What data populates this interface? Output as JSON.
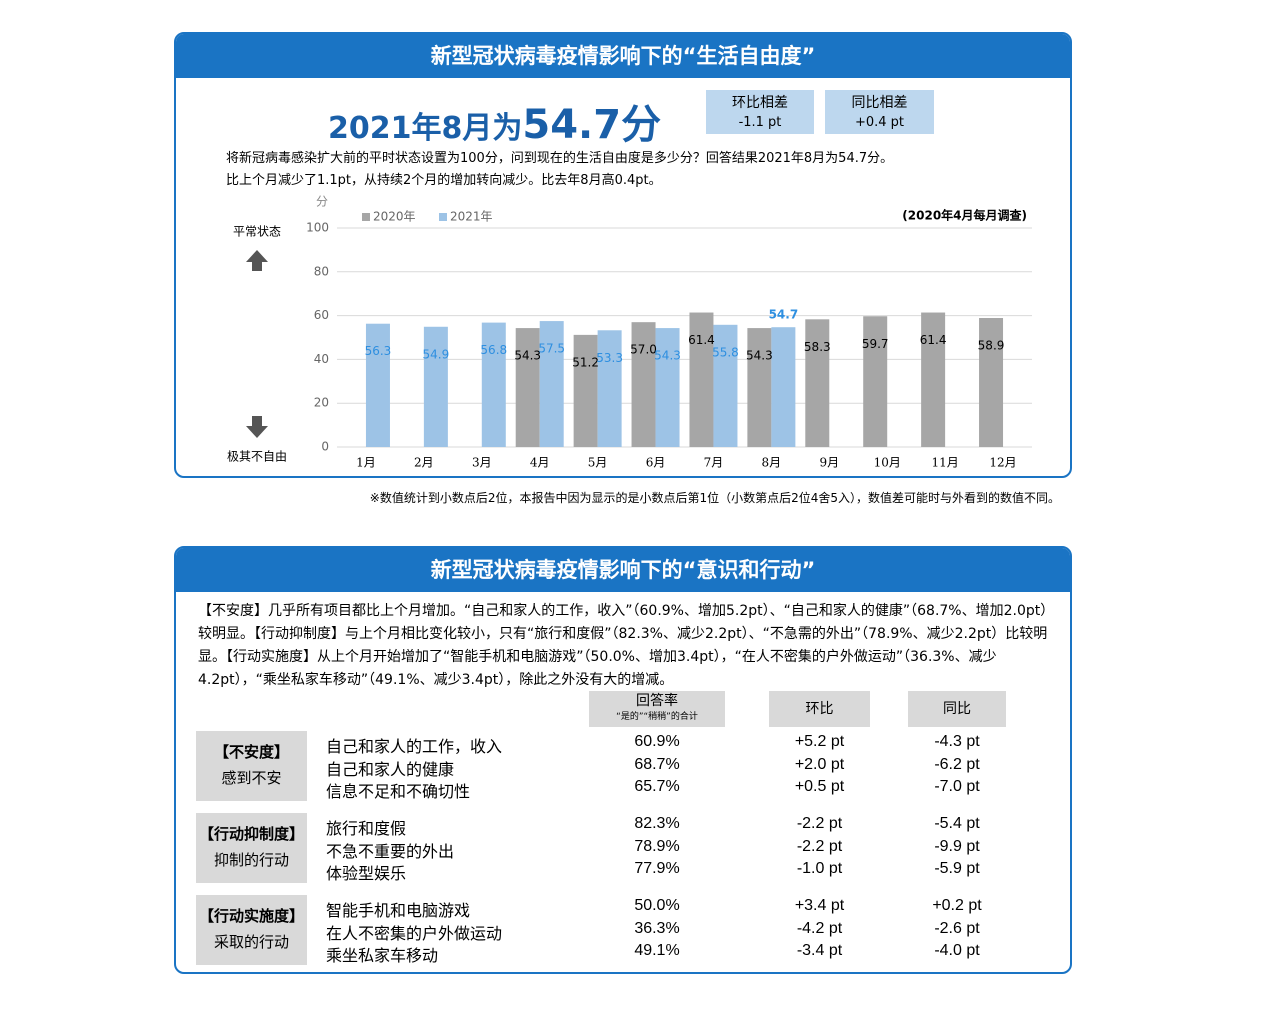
{
  "panel1": {
    "title": "新型冠状病毒疫情影响下的“生活自由度”",
    "headline_prefix": "2021年8月为",
    "headline_value": "54.7分",
    "mom_label": "环比相差",
    "mom_value": "-1.1 pt",
    "yoy_label": "同比相差",
    "yoy_value": "+0.4 pt",
    "description": [
      "将新冠病毒感染扩大前的平时状态设置为100分，问到现在的生活自由度是多少分？回答结果2021年8月为54.7分。",
      "比上个月减少了1.1pt，从持续2个月的增加转向减少。比去年8月高0.4pt。"
    ]
  },
  "chart_data": {
    "type": "bar",
    "y_unit": "分",
    "top_label": "平常状态",
    "bottom_label": "极其不自由",
    "annotation": "(2020年4月每月调查)",
    "categories": [
      "1月",
      "2月",
      "3月",
      "4月",
      "5月",
      "6月",
      "7月",
      "8月",
      "9月",
      "10月",
      "11月",
      "12月"
    ],
    "series": [
      {
        "name": "2020年",
        "color": "#a6a6a6",
        "label_color": "#000000",
        "values": [
          null,
          null,
          null,
          54.3,
          51.2,
          57.0,
          61.4,
          54.3,
          58.3,
          59.7,
          61.4,
          58.9
        ],
        "value_labels": [
          null,
          null,
          null,
          "54.3",
          "51.2",
          "57.0",
          "61.4",
          "54.3",
          "58.3",
          "59.7",
          "61.4",
          "58.9"
        ]
      },
      {
        "name": "2021年",
        "color": "#9dc3e6",
        "label_color": "#2e8fe0",
        "values": [
          56.3,
          54.9,
          56.8,
          57.5,
          53.3,
          54.3,
          55.8,
          54.7,
          null,
          null,
          null,
          null
        ],
        "value_labels": [
          "56.3",
          "54.9",
          "56.8",
          "57.5",
          "53.3",
          "54.3",
          "55.8",
          "54.7",
          null,
          null,
          null,
          null
        ]
      }
    ],
    "ylim": [
      0,
      100
    ],
    "yticks": [
      0,
      20,
      40,
      60,
      80,
      100
    ],
    "grid": true
  },
  "footnote": "※数值统计到小数点后2位，本报告中因为显示的是小数点后第1位（小数第点后2位4舍5入），数值差可能时与外看到的数值不同。",
  "panel2": {
    "title": "新型冠状病毒疫情影响下的“意识和行动”",
    "paragraph": "【不安度】几乎所有项目都比上个月增加。“自己和家人的工作，收入”（60.9%、增加5.2pt）、“自己和家人的健康”（68.7%、增加2.0pt）较明显。【行动抑制度】与上个月相比变化较小，只有“旅行和度假”（82.3%、减少2.2pt）、“不急需的外出”（78.9%、减少2.2pt）比较明显。【行动实施度】从上个月开始增加了“智能手机和电脑游戏”（50.0%、增加3.4pt），“在人不密集的户外做运动”（36.3%、减少4.2pt），“乘坐私家车移动”（49.1%、减少3.4pt），除此之外没有大的增减。",
    "table": {
      "header_rate": "回答率",
      "header_rate_note": "“是的”“稍稍”的合计",
      "header_mom": "环比",
      "header_yoy": "同比",
      "groups": [
        {
          "label": "【不安度】",
          "sublabel": "感到不安",
          "rows": [
            [
              "自己和家人的工作，收入",
              "60.9%",
              "+5.2 pt",
              "-4.3 pt"
            ],
            [
              "自己和家人的健康",
              "68.7%",
              "+2.0 pt",
              "-6.2 pt"
            ],
            [
              "信息不足和不确切性",
              "65.7%",
              "+0.5 pt",
              "-7.0 pt"
            ]
          ]
        },
        {
          "label": "【行动抑制度】",
          "sublabel": "抑制的行动",
          "rows": [
            [
              "旅行和度假",
              "82.3%",
              "-2.2 pt",
              "-5.4 pt"
            ],
            [
              "不急不重要的外出",
              "78.9%",
              "-2.2 pt",
              "-9.9 pt"
            ],
            [
              "体验型娱乐",
              "77.9%",
              "-1.0 pt",
              "-5.9 pt"
            ]
          ]
        },
        {
          "label": "【行动实施度】",
          "sublabel": "采取的行动",
          "rows": [
            [
              "智能手机和电脑游戏",
              "50.0%",
              "+3.4 pt",
              "+0.2 pt"
            ],
            [
              "在人不密集的户外做运动",
              "36.3%",
              "-4.2 pt",
              "-2.6 pt"
            ],
            [
              "乘坐私家车移动",
              "49.1%",
              "-3.4 pt",
              "-4.0 pt"
            ]
          ]
        }
      ]
    }
  }
}
